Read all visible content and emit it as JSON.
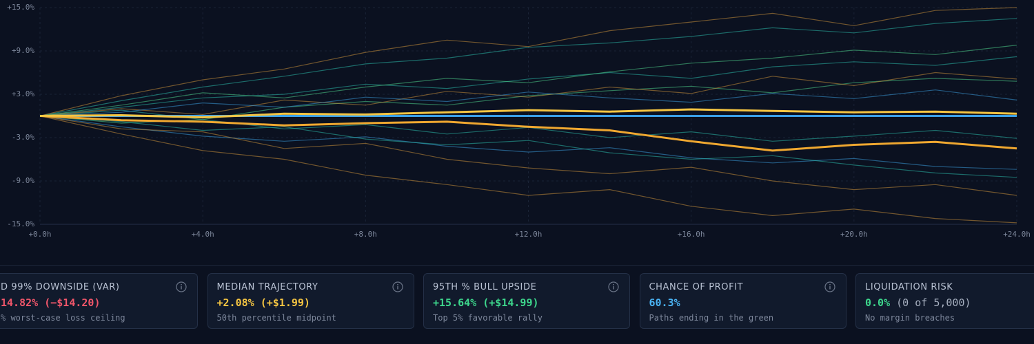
{
  "chart_data": {
    "type": "line",
    "x": [
      0,
      2,
      4,
      6,
      8,
      10,
      12,
      14,
      16,
      18,
      20,
      22,
      24
    ],
    "xlim": [
      0,
      24
    ],
    "xticks": [
      {
        "value": 0,
        "label": "+0.0h"
      },
      {
        "value": 4,
        "label": "+4.0h"
      },
      {
        "value": 8,
        "label": "+8.0h"
      },
      {
        "value": 12,
        "label": "+12.0h"
      },
      {
        "value": 16,
        "label": "+16.0h"
      },
      {
        "value": 20,
        "label": "+20.0h"
      },
      {
        "value": 24,
        "label": "+24.0h"
      }
    ],
    "ylim": [
      -15,
      15
    ],
    "yticks": [
      {
        "value": 15,
        "label": "+15.0%"
      },
      {
        "value": 9,
        "label": "+9.0%"
      },
      {
        "value": 3,
        "label": "+3.0%"
      },
      {
        "value": -3,
        "label": "-3.0%"
      },
      {
        "value": -9,
        "label": "-9.0%"
      },
      {
        "value": -15,
        "label": "-15.0%"
      }
    ],
    "grid": true,
    "series": [
      {
        "color": "#2bb8a8",
        "values": [
          0,
          2.1,
          4.0,
          5.5,
          7.2,
          8.0,
          9.5,
          10.1,
          11.0,
          12.2,
          11.5,
          12.8,
          13.5
        ]
      },
      {
        "color": "#2bb8a8",
        "values": [
          0,
          1.2,
          2.5,
          3.0,
          4.4,
          3.8,
          5.1,
          6.0,
          5.2,
          6.8,
          7.5,
          7.0,
          8.2
        ]
      },
      {
        "color": "#4fd08a",
        "values": [
          0,
          -1.0,
          -0.5,
          1.2,
          2.0,
          1.5,
          2.8,
          3.5,
          4.1,
          3.2,
          4.6,
          5.2,
          4.8
        ]
      },
      {
        "color": "#3a9ad9",
        "values": [
          0,
          -1.5,
          -2.8,
          -3.5,
          -2.9,
          -4.2,
          -5.0,
          -4.4,
          -5.8,
          -6.5,
          -5.9,
          -7.0,
          -7.4
        ]
      },
      {
        "color": "#2bb8a8",
        "values": [
          0,
          0.8,
          -0.5,
          -1.8,
          -1.2,
          -2.5,
          -1.6,
          -3.0,
          -2.2,
          -3.5,
          -2.8,
          -2.0,
          -3.1
        ]
      },
      {
        "color": "#c98f3a",
        "values": [
          0,
          2.8,
          5.0,
          6.5,
          8.8,
          10.5,
          9.6,
          11.8,
          13.0,
          14.2,
          12.5,
          14.6,
          15.0
        ]
      },
      {
        "color": "#c98f3a",
        "values": [
          0,
          -2.5,
          -4.8,
          -6.0,
          -8.2,
          -9.5,
          -11.0,
          -10.2,
          -12.5,
          -13.8,
          -12.9,
          -14.2,
          -14.8
        ]
      },
      {
        "color": "#c98f3a",
        "values": [
          0,
          -1.8,
          -2.2,
          -4.5,
          -3.8,
          -6.0,
          -7.2,
          -8.0,
          -7.1,
          -9.0,
          -10.2,
          -9.5,
          -11.0
        ]
      },
      {
        "color": "#4fd08a",
        "values": [
          0,
          1.5,
          3.2,
          2.5,
          4.0,
          5.2,
          4.6,
          6.1,
          7.3,
          8.0,
          9.1,
          8.5,
          9.8
        ]
      },
      {
        "color": "#2bb8a8",
        "values": [
          0,
          -0.8,
          -2.0,
          -1.5,
          -3.2,
          -4.0,
          -3.4,
          -5.1,
          -6.0,
          -5.5,
          -6.8,
          -7.9,
          -8.5
        ]
      },
      {
        "color": "#c98f3a",
        "values": [
          0,
          1.0,
          0.2,
          2.2,
          1.5,
          3.4,
          2.6,
          4.0,
          3.1,
          5.5,
          4.2,
          6.0,
          5.1
        ]
      },
      {
        "color": "#3a9ad9",
        "values": [
          0,
          0.5,
          1.8,
          1.2,
          2.6,
          2.0,
          3.3,
          2.5,
          1.9,
          3.1,
          2.4,
          3.6,
          2.2
        ]
      },
      {
        "color": "#3aa0e8",
        "values": [
          0,
          0,
          0,
          0,
          0,
          0,
          0,
          0,
          0,
          0,
          0,
          0,
          0
        ]
      },
      {
        "color": "#f0a830",
        "values": [
          0,
          -0.6,
          -0.8,
          -1.3,
          -1.0,
          -0.8,
          -1.5,
          -2.0,
          -3.5,
          -4.8,
          -4.0,
          -3.6,
          -4.5
        ]
      },
      {
        "color": "#f5c542",
        "values": [
          0,
          0.1,
          -0.2,
          0.3,
          0.2,
          0.5,
          0.8,
          0.6,
          0.9,
          0.7,
          0.5,
          0.6,
          0.3
        ]
      }
    ]
  },
  "cards": [
    {
      "title": "D 99% DOWNSIDE (VAR)",
      "value": "14.82% (−$14.20)",
      "color": "#f0566a",
      "caption": "% worst-case loss ceiling"
    },
    {
      "title": "MEDIAN TRAJECTORY",
      "value": "+2.08% (+$1.99)",
      "color": "#f5c542",
      "caption": "50th percentile midpoint"
    },
    {
      "title": "95TH % BULL UPSIDE",
      "value": "+15.64% (+$14.99)",
      "color": "#3dd68c",
      "caption": "Top 5% favorable rally"
    },
    {
      "title": "CHANCE OF PROFIT",
      "value": "60.3%",
      "color": "#4ab3f4",
      "caption": "Paths ending in the green"
    },
    {
      "title": "LIQUIDATION RISK",
      "value": "0.0%",
      "note": "(0 of 5,000)",
      "color": "#3dd68c",
      "caption": "No margin breaches"
    }
  ]
}
